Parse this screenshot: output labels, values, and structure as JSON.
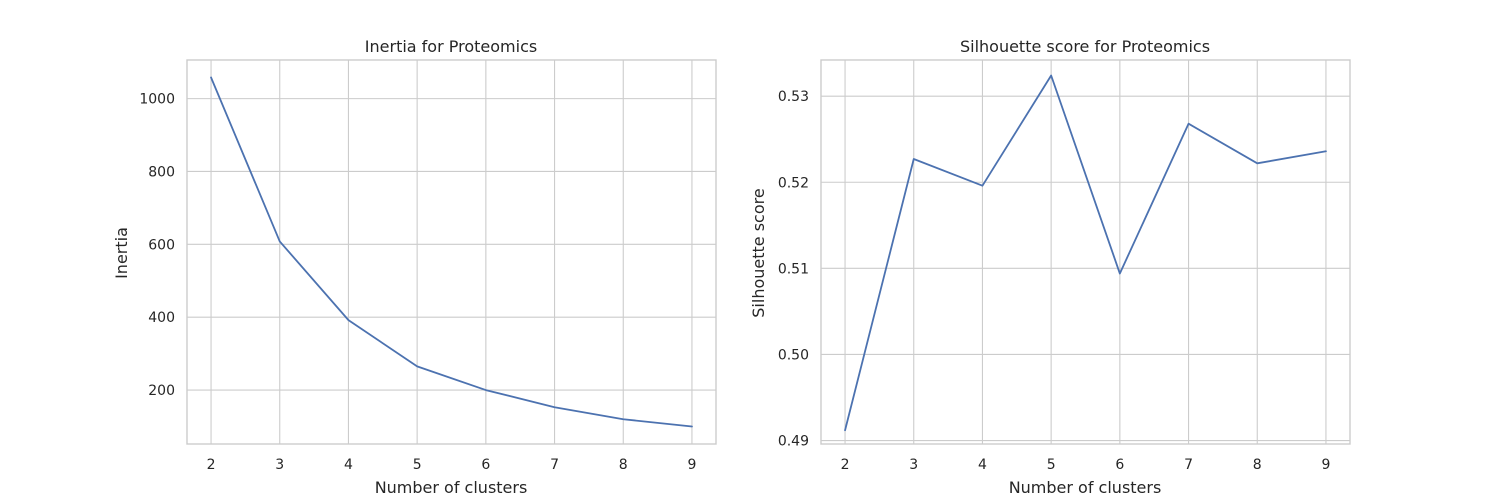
{
  "chart_data": [
    {
      "type": "line",
      "title": "Inertia for Proteomics",
      "xlabel": "Number of clusters",
      "ylabel": "Inertia",
      "x": [
        2,
        3,
        4,
        5,
        6,
        7,
        8,
        9
      ],
      "series": [
        {
          "values": [
            1058,
            608,
            392,
            265,
            200,
            153,
            120,
            100
          ]
        }
      ],
      "xlim": [
        1.65,
        9.35
      ],
      "ylim": [
        52,
        1106
      ],
      "xticks": [
        "2",
        "3",
        "4",
        "5",
        "6",
        "7",
        "8",
        "9"
      ],
      "yticks": [
        200,
        400,
        600,
        800,
        1000
      ],
      "ytick_labels": [
        "200",
        "400",
        "600",
        "800",
        "1000"
      ],
      "grid": true,
      "color": "#4c72b0"
    },
    {
      "type": "line",
      "title": "Silhouette score for Proteomics",
      "xlabel": "Number of clusters",
      "ylabel": "Silhouette score",
      "x": [
        2,
        3,
        4,
        5,
        6,
        7,
        8,
        9
      ],
      "series": [
        {
          "values": [
            0.4912,
            0.5227,
            0.5196,
            0.5324,
            0.5094,
            0.5268,
            0.5222,
            0.5236
          ]
        }
      ],
      "xlim": [
        1.65,
        9.35
      ],
      "ylim": [
        0.4896,
        0.5342
      ],
      "xticks": [
        "2",
        "3",
        "4",
        "5",
        "6",
        "7",
        "8",
        "9"
      ],
      "yticks": [
        0.49,
        0.5,
        0.51,
        0.52,
        0.53
      ],
      "ytick_labels": [
        "0.49",
        "0.50",
        "0.51",
        "0.52",
        "0.53"
      ],
      "grid": true,
      "color": "#4c72b0"
    }
  ]
}
